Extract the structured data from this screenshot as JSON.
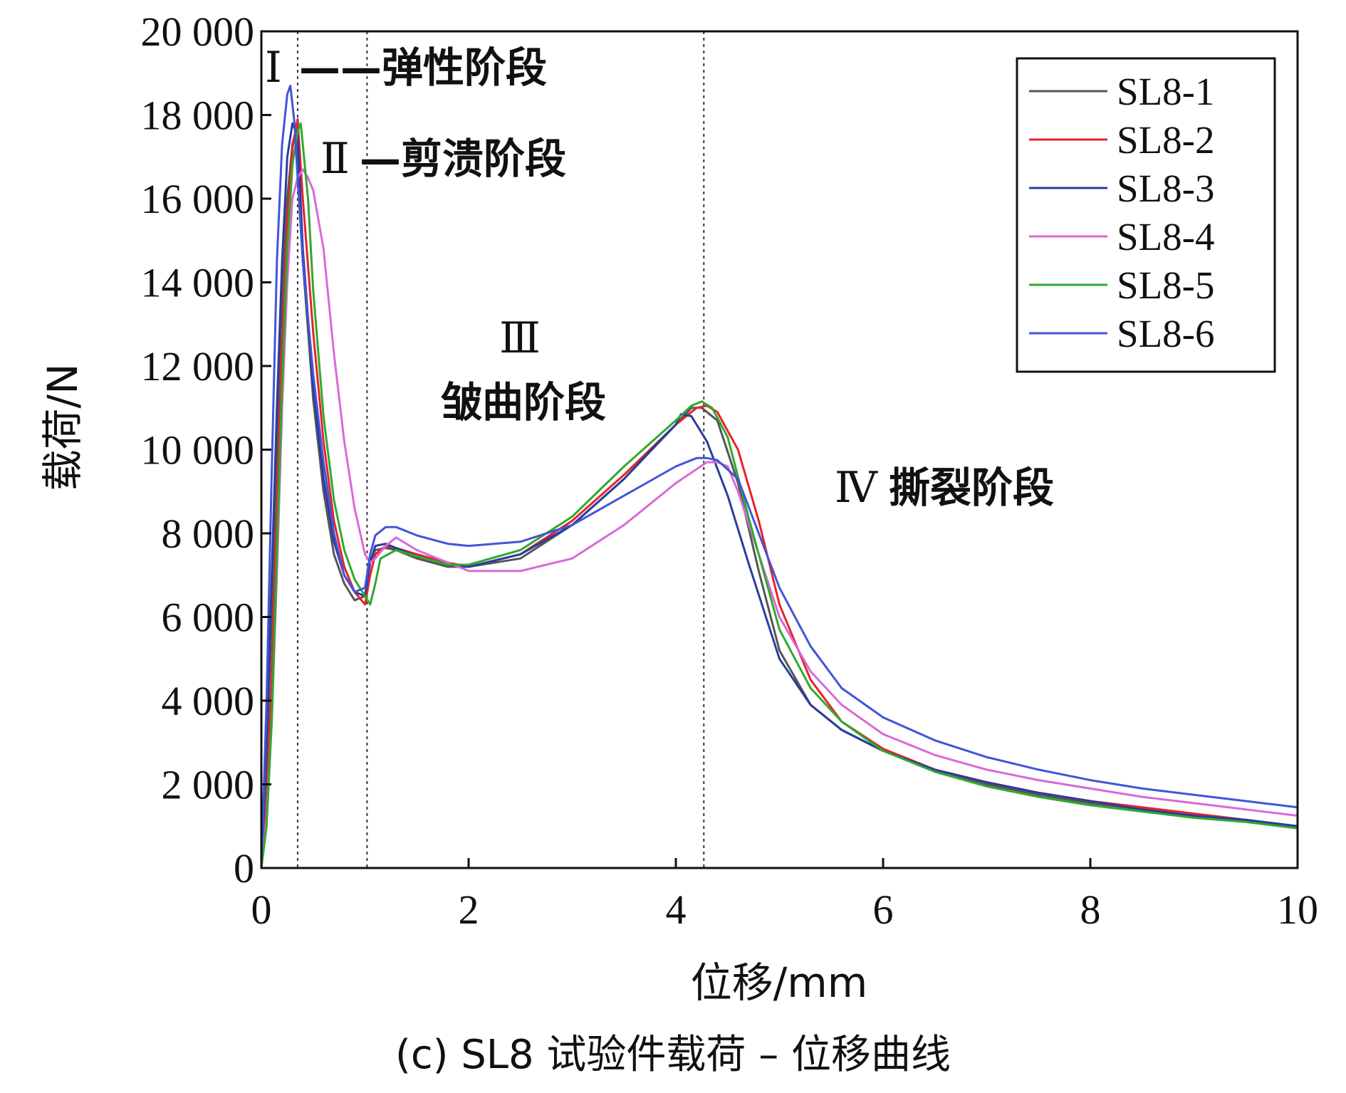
{
  "chart_data": {
    "type": "line",
    "caption": "(c) SL8 试验件载荷 – 位移曲线",
    "xlabel": "位移/mm",
    "ylabel": "载荷/N",
    "xlim": [
      0,
      10
    ],
    "ylim": [
      0,
      20000
    ],
    "x_ticks": [
      0,
      2,
      4,
      6,
      8,
      10
    ],
    "x_tick_labels": [
      "0",
      "2",
      "4",
      "6",
      "8",
      "10"
    ],
    "y_ticks": [
      0,
      2000,
      4000,
      6000,
      8000,
      10000,
      12000,
      14000,
      16000,
      18000,
      20000
    ],
    "y_tick_labels": [
      "0",
      "2 000",
      "4 000",
      "6 000",
      "8 000",
      "10 000",
      "12 000",
      "14 000",
      "16 000",
      "18 000",
      "20 000"
    ],
    "grid": false,
    "legend_position": "top-right",
    "stage_boundaries_x": [
      0.35,
      1.02,
      4.27
    ],
    "annotations": [
      {
        "roman": "Ⅰ",
        "text": "——弹性阶段"
      },
      {
        "roman": "Ⅱ",
        "text": "—剪溃阶段"
      },
      {
        "roman": "Ⅲ",
        "text": "皱曲阶段"
      },
      {
        "roman": "Ⅳ",
        "text": "撕裂阶段"
      }
    ],
    "series": [
      {
        "name": "SL8-1",
        "color": "#555555",
        "x": [
          0,
          0.05,
          0.1,
          0.15,
          0.2,
          0.25,
          0.3,
          0.34,
          0.4,
          0.5,
          0.6,
          0.7,
          0.8,
          0.9,
          1.0,
          1.05,
          1.1,
          1.2,
          1.3,
          1.5,
          1.8,
          2.0,
          2.5,
          3.0,
          3.5,
          4.0,
          4.15,
          4.25,
          4.4,
          4.6,
          4.8,
          5.0,
          5.3,
          5.6,
          6.0,
          6.5,
          7.0,
          7.5,
          8.0,
          8.5,
          9.0,
          9.5,
          10.0
        ],
        "y": [
          0,
          2500,
          6000,
          10000,
          13500,
          16000,
          17300,
          17700,
          14500,
          11200,
          9000,
          7500,
          6800,
          6400,
          6500,
          7300,
          7600,
          7650,
          7600,
          7400,
          7200,
          7200,
          7400,
          8200,
          9300,
          10600,
          11000,
          11000,
          10700,
          9200,
          7100,
          5200,
          3900,
          3300,
          2800,
          2350,
          2000,
          1750,
          1550,
          1400,
          1250,
          1150,
          1000
        ]
      },
      {
        "name": "SL8-2",
        "color": "#e8232a",
        "x": [
          0,
          0.05,
          0.1,
          0.15,
          0.2,
          0.25,
          0.3,
          0.35,
          0.4,
          0.5,
          0.6,
          0.7,
          0.8,
          0.9,
          1.0,
          1.05,
          1.1,
          1.2,
          1.3,
          1.5,
          1.8,
          2.0,
          2.5,
          3.0,
          3.5,
          4.0,
          4.2,
          4.3,
          4.4,
          4.6,
          4.8,
          5.0,
          5.3,
          5.6,
          6.0,
          6.5,
          7.0,
          7.5,
          8.0,
          8.5,
          9.0,
          9.5,
          10.0
        ],
        "y": [
          0,
          1500,
          4500,
          8500,
          12500,
          15500,
          17200,
          17900,
          16000,
          12800,
          10200,
          8300,
          7200,
          6600,
          6300,
          7000,
          7500,
          7700,
          7650,
          7500,
          7300,
          7200,
          7500,
          8300,
          9400,
          10600,
          11000,
          11050,
          10900,
          10000,
          8300,
          6300,
          4500,
          3500,
          2850,
          2350,
          2050,
          1800,
          1600,
          1450,
          1300,
          1150,
          950
        ]
      },
      {
        "name": "SL8-3",
        "color": "#2b3c9e",
        "x": [
          0,
          0.05,
          0.1,
          0.15,
          0.2,
          0.25,
          0.3,
          0.35,
          0.4,
          0.5,
          0.6,
          0.7,
          0.8,
          0.9,
          1.0,
          1.05,
          1.1,
          1.2,
          1.3,
          1.5,
          1.8,
          2.0,
          2.5,
          3.0,
          3.5,
          3.8,
          4.0,
          4.05,
          4.15,
          4.3,
          4.5,
          4.7,
          5.0,
          5.3,
          5.6,
          6.0,
          6.5,
          7.0,
          7.5,
          8.0,
          8.5,
          9.0,
          9.5,
          10.0
        ],
        "y": [
          0,
          3000,
          7000,
          11000,
          14500,
          17000,
          17800,
          17500,
          14800,
          11500,
          9300,
          7800,
          7000,
          6600,
          6500,
          7300,
          7700,
          7750,
          7650,
          7450,
          7250,
          7200,
          7500,
          8200,
          9300,
          10100,
          10600,
          10850,
          10800,
          10200,
          8900,
          7300,
          5000,
          3900,
          3300,
          2800,
          2350,
          2050,
          1800,
          1600,
          1400,
          1250,
          1150,
          1000
        ]
      },
      {
        "name": "SL8-4",
        "color": "#d86ad8",
        "x": [
          0,
          0.05,
          0.1,
          0.15,
          0.2,
          0.25,
          0.3,
          0.35,
          0.4,
          0.45,
          0.5,
          0.6,
          0.7,
          0.8,
          0.9,
          1.0,
          1.05,
          1.1,
          1.2,
          1.3,
          1.5,
          1.8,
          2.0,
          2.5,
          3.0,
          3.5,
          4.0,
          4.3,
          4.4,
          4.5,
          4.6,
          4.8,
          5.0,
          5.3,
          5.6,
          6.0,
          6.5,
          7.0,
          7.5,
          8.0,
          8.5,
          9.0,
          9.5,
          10.0
        ],
        "y": [
          0,
          1200,
          3500,
          7000,
          11000,
          14000,
          16000,
          16500,
          16700,
          16500,
          16200,
          14800,
          12300,
          10200,
          8600,
          7500,
          7300,
          7400,
          7700,
          7900,
          7600,
          7300,
          7100,
          7100,
          7400,
          8200,
          9200,
          9700,
          9700,
          9600,
          9000,
          7500,
          6000,
          4700,
          3900,
          3200,
          2700,
          2350,
          2100,
          1900,
          1700,
          1550,
          1400,
          1250
        ]
      },
      {
        "name": "SL8-5",
        "color": "#2eaa2e",
        "x": [
          0,
          0.05,
          0.1,
          0.15,
          0.2,
          0.25,
          0.3,
          0.35,
          0.38,
          0.45,
          0.5,
          0.6,
          0.7,
          0.8,
          0.9,
          1.0,
          1.05,
          1.1,
          1.15,
          1.3,
          1.5,
          1.8,
          2.0,
          2.5,
          3.0,
          3.5,
          4.0,
          4.15,
          4.25,
          4.35,
          4.5,
          4.7,
          5.0,
          5.3,
          5.6,
          6.0,
          6.5,
          7.0,
          7.5,
          8.0,
          8.5,
          9.0,
          9.5,
          10.0
        ],
        "y": [
          0,
          1000,
          3500,
          7500,
          11500,
          14800,
          16800,
          17600,
          17800,
          16000,
          13800,
          10800,
          8800,
          7600,
          6900,
          6500,
          6300,
          6800,
          7400,
          7600,
          7450,
          7250,
          7250,
          7600,
          8400,
          9600,
          10700,
          11050,
          11150,
          11000,
          10300,
          8400,
          5700,
          4300,
          3500,
          2800,
          2300,
          1950,
          1700,
          1500,
          1350,
          1200,
          1100,
          950
        ]
      },
      {
        "name": "SL8-6",
        "color": "#4055d8",
        "x": [
          0,
          0.05,
          0.1,
          0.15,
          0.2,
          0.25,
          0.28,
          0.32,
          0.35,
          0.4,
          0.5,
          0.6,
          0.7,
          0.8,
          0.9,
          1.0,
          1.05,
          1.1,
          1.2,
          1.3,
          1.5,
          1.8,
          2.0,
          2.5,
          3.0,
          3.5,
          4.0,
          4.2,
          4.3,
          4.4,
          4.6,
          4.8,
          5.0,
          5.3,
          5.6,
          6.0,
          6.5,
          7.0,
          7.5,
          8.0,
          8.5,
          9.0,
          9.5,
          10.0
        ],
        "y": [
          0,
          4000,
          9500,
          14500,
          17300,
          18500,
          18700,
          17800,
          16500,
          14500,
          11800,
          9700,
          8000,
          7000,
          6600,
          6700,
          7500,
          7950,
          8150,
          8150,
          7950,
          7750,
          7700,
          7800,
          8200,
          8900,
          9600,
          9800,
          9800,
          9750,
          9300,
          8000,
          6700,
          5300,
          4300,
          3600,
          3050,
          2650,
          2350,
          2100,
          1900,
          1750,
          1600,
          1450
        ]
      }
    ]
  }
}
